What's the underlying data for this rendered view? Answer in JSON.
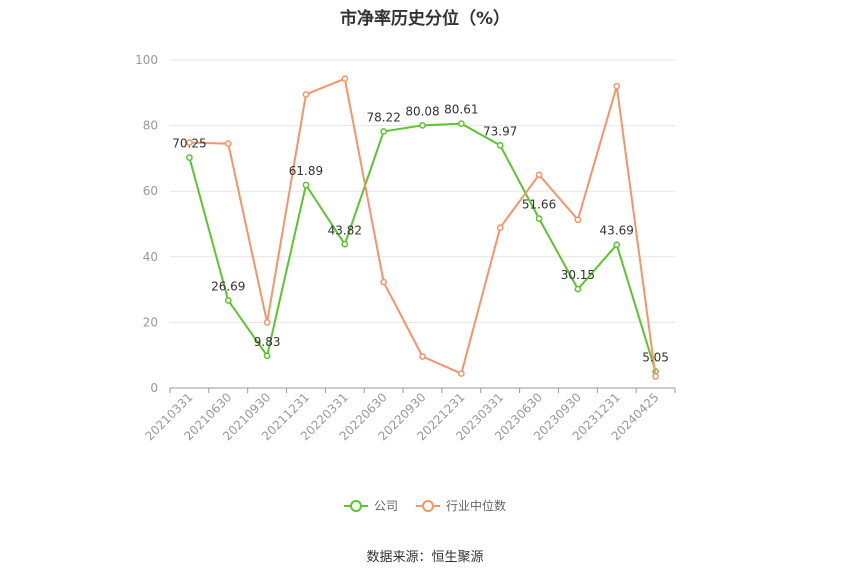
{
  "chart_data": {
    "type": "line",
    "title": "市净率历史分位（%）",
    "categories": [
      "20210331",
      "20210630",
      "20210930",
      "20211231",
      "20220331",
      "20220630",
      "20220930",
      "20221231",
      "20230331",
      "20230630",
      "20230930",
      "20231231",
      "20240425"
    ],
    "series": [
      {
        "name": "公司",
        "color": "#5cc52e",
        "values": [
          70.25,
          26.69,
          9.83,
          61.89,
          43.82,
          78.22,
          80.08,
          80.61,
          73.97,
          51.66,
          30.15,
          43.69,
          5.05
        ],
        "labels": [
          "70.25",
          "26.69",
          "9.83",
          "61.89",
          "43.82",
          "78.22",
          "80.08",
          "80.61",
          "73.97",
          "51.66",
          "30.15",
          "43.69",
          "5.05"
        ]
      },
      {
        "name": "行业中位数",
        "color": "#f4946a",
        "values": [
          74.8,
          74.5,
          20.0,
          89.5,
          94.3,
          32.3,
          9.6,
          4.4,
          48.9,
          65.0,
          51.3,
          92.0,
          3.5
        ]
      }
    ],
    "ylim": [
      0,
      100
    ],
    "yticks": [
      "0",
      "20",
      "40",
      "60",
      "80",
      "100"
    ],
    "grid": true,
    "legend_position": "bottom"
  },
  "source": "数据来源：恒生聚源"
}
